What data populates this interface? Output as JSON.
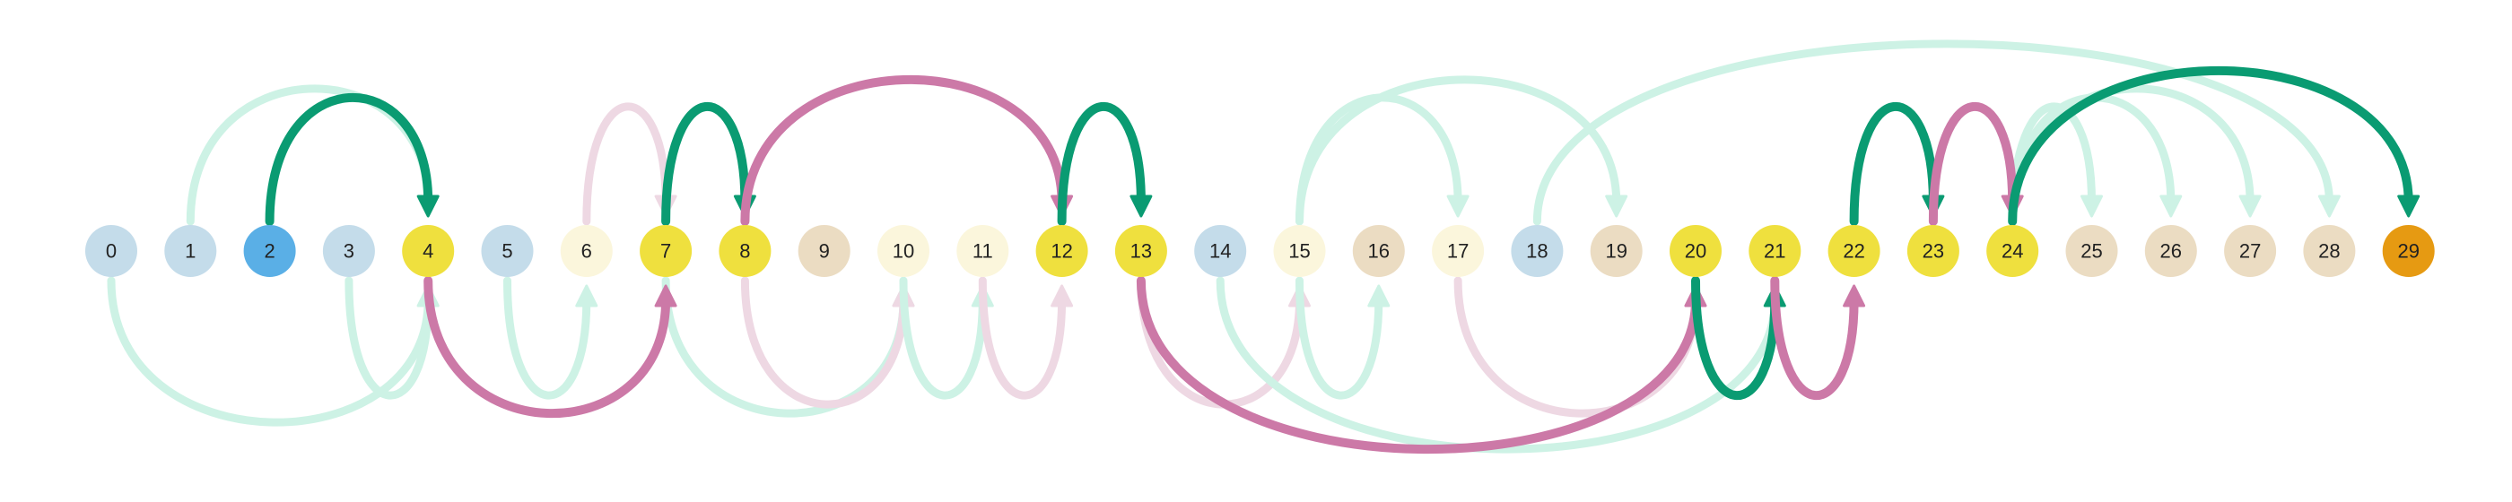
{
  "nodes": [
    {
      "label": "0",
      "color": "#c4dcea"
    },
    {
      "label": "1",
      "color": "#c4dcea"
    },
    {
      "label": "2",
      "color": "#5aafe6"
    },
    {
      "label": "3",
      "color": "#c4dcea"
    },
    {
      "label": "4",
      "color": "#efe03e"
    },
    {
      "label": "5",
      "color": "#c4dcea"
    },
    {
      "label": "6",
      "color": "#fbf6dc"
    },
    {
      "label": "7",
      "color": "#efe03e"
    },
    {
      "label": "8",
      "color": "#efe03e"
    },
    {
      "label": "9",
      "color": "#ebdcc2"
    },
    {
      "label": "10",
      "color": "#fbf6dc"
    },
    {
      "label": "11",
      "color": "#fbf6dc"
    },
    {
      "label": "12",
      "color": "#efe03e"
    },
    {
      "label": "13",
      "color": "#efe03e"
    },
    {
      "label": "14",
      "color": "#c4dcea"
    },
    {
      "label": "15",
      "color": "#fbf6dc"
    },
    {
      "label": "16",
      "color": "#ebdcc2"
    },
    {
      "label": "17",
      "color": "#fbf6dc"
    },
    {
      "label": "18",
      "color": "#c4dcea"
    },
    {
      "label": "19",
      "color": "#ebdcc2"
    },
    {
      "label": "20",
      "color": "#efe03e"
    },
    {
      "label": "21",
      "color": "#efe03e"
    },
    {
      "label": "22",
      "color": "#efe03e"
    },
    {
      "label": "23",
      "color": "#efe03e"
    },
    {
      "label": "24",
      "color": "#efe03e"
    },
    {
      "label": "25",
      "color": "#ebdcc2"
    },
    {
      "label": "26",
      "color": "#ebdcc2"
    },
    {
      "label": "27",
      "color": "#ebdcc2"
    },
    {
      "label": "28",
      "color": "#ebdcc2"
    },
    {
      "label": "29",
      "color": "#e69a12"
    }
  ],
  "edge_colors": {
    "green_strong": "#0a9b72",
    "green_light": "#cdf2e5",
    "pink_strong": "#cc79a7",
    "pink_light": "#eed8e3"
  },
  "edges": [
    {
      "from": 0,
      "to": 4,
      "side": "below",
      "style": "green_light"
    },
    {
      "from": 1,
      "to": 4,
      "side": "above",
      "style": "green_light"
    },
    {
      "from": 2,
      "to": 4,
      "side": "above",
      "style": "green_strong"
    },
    {
      "from": 3,
      "to": 4,
      "side": "below",
      "style": "green_light"
    },
    {
      "from": 4,
      "to": 7,
      "side": "below",
      "style": "pink_strong"
    },
    {
      "from": 5,
      "to": 6,
      "side": "below",
      "style": "green_light"
    },
    {
      "from": 6,
      "to": 7,
      "side": "above",
      "style": "pink_light"
    },
    {
      "from": 7,
      "to": 8,
      "side": "above",
      "style": "green_strong"
    },
    {
      "from": 7,
      "to": 10,
      "side": "below",
      "style": "green_light"
    },
    {
      "from": 8,
      "to": 12,
      "side": "above",
      "style": "pink_strong"
    },
    {
      "from": 8,
      "to": 10,
      "side": "below",
      "style": "pink_light"
    },
    {
      "from": 10,
      "to": 11,
      "side": "below",
      "style": "green_light"
    },
    {
      "from": 11,
      "to": 12,
      "side": "below",
      "style": "pink_light"
    },
    {
      "from": 12,
      "to": 13,
      "side": "above",
      "style": "green_strong"
    },
    {
      "from": 13,
      "to": 15,
      "side": "below",
      "style": "pink_light"
    },
    {
      "from": 13,
      "to": 20,
      "side": "below",
      "style": "pink_strong"
    },
    {
      "from": 14,
      "to": 21,
      "side": "below",
      "style": "green_light"
    },
    {
      "from": 15,
      "to": 16,
      "side": "below",
      "style": "green_light"
    },
    {
      "from": 15,
      "to": 17,
      "side": "above",
      "style": "green_light"
    },
    {
      "from": 15,
      "to": 19,
      "side": "above",
      "style": "green_light"
    },
    {
      "from": 17,
      "to": 20,
      "side": "below",
      "style": "pink_light"
    },
    {
      "from": 18,
      "to": 28,
      "side": "above",
      "style": "green_light"
    },
    {
      "from": 20,
      "to": 21,
      "side": "below",
      "style": "green_strong"
    },
    {
      "from": 21,
      "to": 22,
      "side": "below",
      "style": "pink_strong"
    },
    {
      "from": 22,
      "to": 23,
      "side": "above",
      "style": "green_strong"
    },
    {
      "from": 23,
      "to": 24,
      "side": "above",
      "style": "pink_strong"
    },
    {
      "from": 24,
      "to": 25,
      "side": "above",
      "style": "green_light"
    },
    {
      "from": 24,
      "to": 26,
      "side": "above",
      "style": "green_light"
    },
    {
      "from": 24,
      "to": 27,
      "side": "above",
      "style": "green_light"
    },
    {
      "from": 24,
      "to": 29,
      "side": "above",
      "style": "green_strong"
    }
  ]
}
